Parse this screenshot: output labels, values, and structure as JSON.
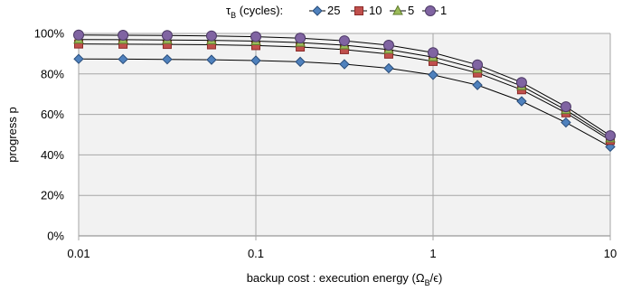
{
  "chart_data": {
    "type": "line",
    "xscale": "log",
    "xlim": [
      0.01,
      10
    ],
    "ylim": [
      0,
      100
    ],
    "xticks": [
      "0.01",
      "0.1",
      "1",
      "10"
    ],
    "yticks": [
      "0%",
      "20%",
      "40%",
      "60%",
      "80%",
      "100%"
    ],
    "xlabel": "backup cost : execution energy  (Ω",
    "xlabel_sub": "B",
    "xlabel_end": "/ϵ)",
    "ylabel": "progress p",
    "grid": true,
    "legend": {
      "placement": "top",
      "title": "τ",
      "title_sub": "B",
      "title_end": " (cycles):"
    },
    "x": [
      0.01,
      0.0178,
      0.0316,
      0.0562,
      0.1,
      0.178,
      0.316,
      0.562,
      1,
      1.78,
      3.16,
      5.62,
      10
    ],
    "series": [
      {
        "name": "25",
        "marker": "diamond",
        "color": "#4f81bd",
        "stroke": "#2a4d7a",
        "values": [
          87.4,
          87.3,
          87.2,
          87.0,
          86.6,
          86.0,
          84.8,
          82.8,
          79.5,
          74.5,
          66.5,
          56.0,
          44.0
        ]
      },
      {
        "name": "10",
        "marker": "square",
        "color": "#c0504d",
        "stroke": "#8c2a28",
        "values": [
          94.8,
          94.7,
          94.6,
          94.4,
          94.0,
          93.3,
          92.0,
          89.8,
          86.2,
          80.5,
          72.2,
          60.8,
          47.2
        ]
      },
      {
        "name": "5",
        "marker": "triangle",
        "color": "#9bbb59",
        "stroke": "#5f7a2c",
        "values": [
          97.0,
          96.9,
          96.8,
          96.6,
          96.2,
          95.5,
          94.2,
          92.0,
          88.3,
          82.5,
          74.0,
          62.2,
          48.2
        ]
      },
      {
        "name": "1",
        "marker": "circle",
        "color": "#8064a2",
        "stroke": "#4d3a66",
        "values": [
          99.2,
          99.1,
          99.0,
          98.8,
          98.4,
          97.7,
          96.4,
          94.2,
          90.5,
          84.5,
          75.8,
          63.8,
          49.5
        ]
      }
    ]
  }
}
